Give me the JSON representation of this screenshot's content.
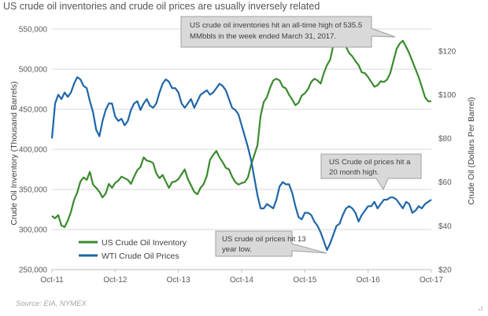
{
  "page": {
    "title": "US crude oil inventories and crude oil prices are usually inversely related",
    "source": "Source: EIA, NYMEX"
  },
  "chart_data": {
    "type": "line",
    "title": "US crude oil inventories and crude oil prices are usually inversely related",
    "ylabel": "Crude Oil Inventory  (Thousand Barrels)",
    "y2label": "Crude Oil (Dollars Per Barrel)",
    "xlabel": "",
    "x_ticks": [
      "Oct-11",
      "Oct-12",
      "Oct-13",
      "Oct-14",
      "Oct-15",
      "Oct-16",
      "Oct-17"
    ],
    "x_tick_years": [
      2011.75,
      2012.75,
      2013.75,
      2014.75,
      2015.75,
      2016.75,
      2017.75
    ],
    "xlim": [
      2011.75,
      2017.75
    ],
    "ylim": [
      250000,
      550000
    ],
    "y_ticks": [
      250000,
      300000,
      350000,
      400000,
      450000,
      500000,
      550000
    ],
    "y_tick_labels": [
      "250,000",
      "300,000",
      "350,000",
      "400,000",
      "450,000",
      "500,000",
      "550,000"
    ],
    "y2lim": [
      20,
      130
    ],
    "y2_ticks": [
      20,
      40,
      60,
      80,
      100,
      120
    ],
    "y2_tick_labels": [
      "$20",
      "$40",
      "$60",
      "$80",
      "$100",
      "$120"
    ],
    "grid": true,
    "legend_position": "bottom-left",
    "series": [
      {
        "name": "US Crude Oil Inventory",
        "axis": "left",
        "color": "#3a8a2e",
        "x": [
          2011.75,
          2011.8,
          2011.85,
          2011.9,
          2011.95,
          2012.0,
          2012.05,
          2012.1,
          2012.15,
          2012.2,
          2012.25,
          2012.3,
          2012.35,
          2012.4,
          2012.45,
          2012.5,
          2012.55,
          2012.6,
          2012.65,
          2012.7,
          2012.75,
          2012.8,
          2012.85,
          2012.9,
          2012.95,
          2013.0,
          2013.05,
          2013.1,
          2013.15,
          2013.2,
          2013.25,
          2013.3,
          2013.35,
          2013.4,
          2013.45,
          2013.5,
          2013.55,
          2013.6,
          2013.65,
          2013.7,
          2013.75,
          2013.8,
          2013.85,
          2013.9,
          2013.95,
          2014.0,
          2014.05,
          2014.1,
          2014.15,
          2014.2,
          2014.25,
          2014.3,
          2014.35,
          2014.4,
          2014.45,
          2014.5,
          2014.55,
          2014.6,
          2014.65,
          2014.7,
          2014.75,
          2014.8,
          2014.85,
          2014.9,
          2014.95,
          2015.0,
          2015.05,
          2015.1,
          2015.15,
          2015.2,
          2015.25,
          2015.3,
          2015.35,
          2015.4,
          2015.45,
          2015.5,
          2015.55,
          2015.6,
          2015.65,
          2015.7,
          2015.75,
          2015.8,
          2015.85,
          2015.9,
          2015.95,
          2016.0,
          2016.05,
          2016.1,
          2016.15,
          2016.2,
          2016.25,
          2016.3,
          2016.35,
          2016.4,
          2016.45,
          2016.5,
          2016.55,
          2016.6,
          2016.65,
          2016.7,
          2016.75,
          2016.8,
          2016.85,
          2016.9,
          2016.95,
          2017.0,
          2017.05,
          2017.1,
          2017.15,
          2017.2,
          2017.25,
          2017.3,
          2017.35,
          2017.4,
          2017.45,
          2017.5,
          2017.55,
          2017.6,
          2017.65,
          2017.7,
          2017.75
        ],
        "values": [
          317000,
          314000,
          318000,
          305000,
          303000,
          311000,
          322000,
          337000,
          346000,
          360000,
          365000,
          362000,
          372000,
          356000,
          352000,
          347000,
          340000,
          345000,
          357000,
          352000,
          358000,
          361000,
          366000,
          364000,
          362000,
          357000,
          366000,
          374000,
          378000,
          390000,
          386000,
          385000,
          383000,
          370000,
          364000,
          368000,
          360000,
          352000,
          359000,
          360000,
          363000,
          369000,
          375000,
          363000,
          355000,
          347000,
          344000,
          352000,
          357000,
          367000,
          387000,
          393000,
          398000,
          390000,
          384000,
          377000,
          375000,
          366000,
          359000,
          356000,
          358000,
          359000,
          365000,
          381000,
          393000,
          405000,
          442000,
          459000,
          465000,
          477000,
          486000,
          488000,
          486000,
          478000,
          476000,
          468000,
          462000,
          455000,
          458000,
          467000,
          470000,
          475000,
          484000,
          488000,
          486000,
          482000,
          495000,
          505000,
          512000,
          530000,
          535000,
          540000,
          537000,
          528000,
          520000,
          516000,
          510000,
          505000,
          496000,
          495000,
          490000,
          484000,
          478000,
          480000,
          485000,
          484000,
          487000,
          495000,
          510000,
          525000,
          532000,
          535500,
          528000,
          520000,
          510000,
          500000,
          490000,
          478000,
          465000,
          460000,
          460000
        ],
        "values_note_removed": true
      },
      {
        "name": "WTI Crude Oil Prices",
        "axis": "right",
        "color": "#1f66a8",
        "x": [
          2011.75,
          2011.8,
          2011.85,
          2011.9,
          2011.95,
          2012.0,
          2012.05,
          2012.1,
          2012.15,
          2012.2,
          2012.25,
          2012.3,
          2012.35,
          2012.4,
          2012.45,
          2012.5,
          2012.55,
          2012.6,
          2012.65,
          2012.7,
          2012.75,
          2012.8,
          2012.85,
          2012.9,
          2012.95,
          2013.0,
          2013.05,
          2013.1,
          2013.15,
          2013.2,
          2013.25,
          2013.3,
          2013.35,
          2013.4,
          2013.45,
          2013.5,
          2013.55,
          2013.6,
          2013.65,
          2013.7,
          2013.75,
          2013.8,
          2013.85,
          2013.9,
          2013.95,
          2014.0,
          2014.05,
          2014.1,
          2014.15,
          2014.2,
          2014.25,
          2014.3,
          2014.35,
          2014.4,
          2014.45,
          2014.5,
          2014.55,
          2014.6,
          2014.65,
          2014.7,
          2014.75,
          2014.8,
          2014.85,
          2014.9,
          2014.95,
          2015.0,
          2015.05,
          2015.1,
          2015.15,
          2015.2,
          2015.25,
          2015.3,
          2015.35,
          2015.4,
          2015.45,
          2015.5,
          2015.55,
          2015.6,
          2015.65,
          2015.7,
          2015.75,
          2015.8,
          2015.85,
          2015.9,
          2015.95,
          2016.0,
          2016.05,
          2016.1,
          2016.15,
          2016.2,
          2016.25,
          2016.3,
          2016.35,
          2016.4,
          2016.45,
          2016.5,
          2016.55,
          2016.6,
          2016.65,
          2016.7,
          2016.75,
          2016.8,
          2016.85,
          2016.9,
          2016.95,
          2017.0,
          2017.05,
          2017.1,
          2017.15,
          2017.2,
          2017.25,
          2017.3,
          2017.35,
          2017.4,
          2017.45,
          2017.5,
          2017.55,
          2017.6,
          2017.65,
          2017.7,
          2017.75
        ],
        "values": [
          80,
          96,
          100,
          98,
          101,
          99,
          101,
          105,
          108,
          107,
          104,
          103,
          97,
          92,
          84,
          81,
          88,
          93,
          96,
          96,
          90,
          88,
          89,
          86,
          88,
          93,
          96,
          97,
          93,
          96,
          98,
          95,
          94,
          96,
          101,
          105,
          107,
          106,
          103,
          103,
          101,
          96,
          94,
          96,
          98,
          94,
          97,
          100,
          101,
          102,
          100,
          101,
          103,
          105,
          104,
          102,
          98,
          94,
          93,
          91,
          86,
          81,
          76,
          70,
          62,
          54,
          48,
          48,
          50,
          49,
          48,
          52,
          58,
          60,
          59,
          59,
          55,
          49,
          44,
          43,
          46,
          46,
          45,
          42,
          40,
          37,
          33,
          29,
          32,
          36,
          40,
          41,
          45,
          48,
          49,
          48,
          46,
          42,
          45,
          47,
          49,
          49,
          51,
          48,
          50,
          52,
          52,
          53,
          53,
          52,
          50,
          48,
          51,
          50,
          46,
          47,
          49,
          48,
          50,
          51,
          52
        ]
      }
    ],
    "annotations": [
      "US crude oil inventories hit an all-time high of 535.5 MMbbls in the week ended March 31, 2017.",
      "US Crude oil prices hit a 20 month high.",
      "US crude oil prices hit 13 year low."
    ]
  },
  "legend": {
    "inventory_label": "US Crude Oil Inventory",
    "prices_label": "WTI Crude Oil Prices"
  },
  "callouts": {
    "high_line1": "US crude oil inventories hit an all-time high of 535.5",
    "high_line2": "MMbbls in the week ended March 31, 2017.",
    "price_high_line1": "US Crude oil prices hit a",
    "price_high_line2": "20 month high.",
    "price_low_line1": "US crude oil prices hit 13",
    "price_low_line2": "year low."
  },
  "colors": {
    "inventory": "#3a8a2e",
    "prices": "#1f66a8",
    "grid": "#d9d9d9",
    "callout_fill": "#d9d9d9",
    "callout_stroke": "#a0a0a0"
  }
}
